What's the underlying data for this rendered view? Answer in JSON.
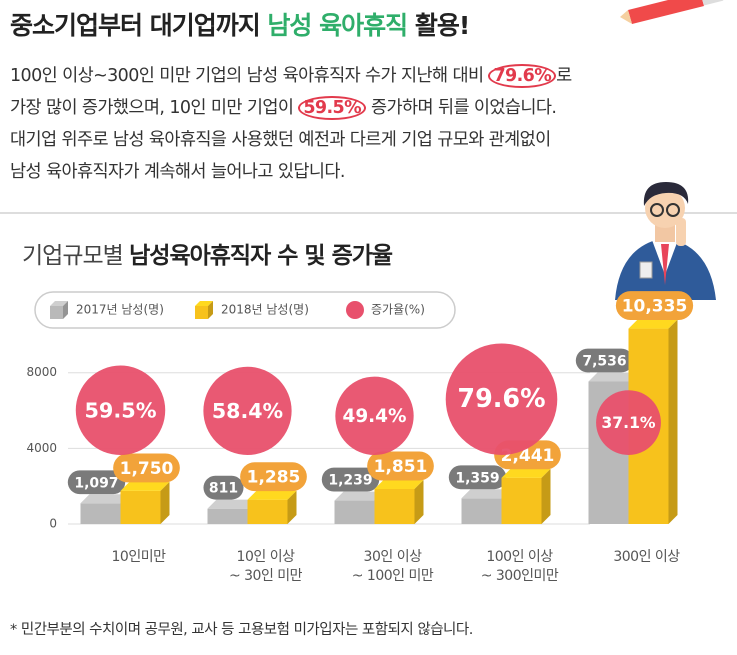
{
  "headline": [
    "중소기업부터 대기업까지 ",
    "남성 육아휴직",
    " 활용!"
  ],
  "intro": [
    [
      "100인 이상~300인 미만 기업의 남성 육아휴직자 수가 지난해 대비 ",
      "79.6%",
      "로"
    ],
    [
      "가장 많이 증가했으며, 10인 미만 기업이 ",
      "59.5%",
      " 증가하며 뒤를 이었습니다."
    ],
    [
      "대기업 위주로 남성 육아휴직을 사용했던 예전과 다르게 기업 규모와 관계없이"
    ],
    [
      "남성 육아휴직자가 계속해서 늘어나고 있답니다."
    ]
  ],
  "chart_data": {
    "type": "bar",
    "title": [
      "기업규모별 ",
      "남성육아휴직자 수 및 증가율"
    ],
    "categories": [
      "10인미만",
      "10인 이상\n~ 30인 미만",
      "30인 이상\n~ 100인 미만",
      "100인 이상\n~ 300인미만",
      "300인 이상"
    ],
    "series": [
      {
        "name": "2017년 남성(명)",
        "color": "#b9b9b9",
        "label_color": "#7a7a7a",
        "values": [
          1097,
          811,
          1239,
          1359,
          7536
        ],
        "value_labels": [
          "1,097",
          "811",
          "1,239",
          "1,359",
          "7,536"
        ]
      },
      {
        "name": "2018년 남성(명)",
        "color": "#f7c21c",
        "label_color": "#f2a33a",
        "values": [
          1750,
          1285,
          1851,
          2441,
          10335
        ],
        "value_labels": [
          "1,750",
          "1,285",
          "1,851",
          "2,441",
          "10,335"
        ]
      }
    ],
    "growth": {
      "name": "증가율(%)",
      "color": "#e8506c",
      "values": [
        59.5,
        58.4,
        49.4,
        79.6,
        37.1
      ],
      "value_labels": [
        "59.5%",
        "58.4%",
        "49.4%",
        "79.6%",
        "37.1%"
      ]
    },
    "ylim": [
      0,
      11000
    ],
    "yticks": [
      0,
      4000,
      8000
    ],
    "grid": true
  },
  "footnote": "* 민간부분의 수치이며 공무원, 교사 등 고용보험 미가입자는 포함되지 않습니다."
}
